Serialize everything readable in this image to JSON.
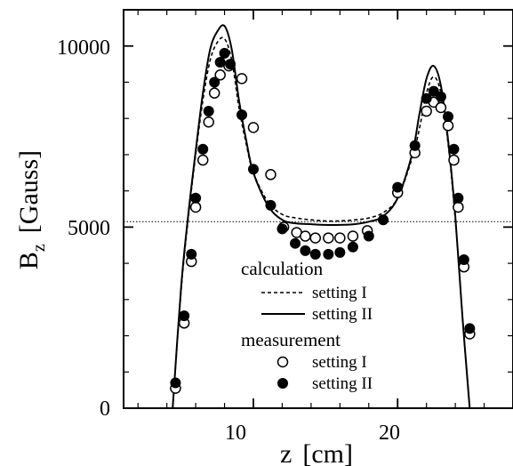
{
  "chart_data": {
    "type": "line",
    "xlabel": "z",
    "xlabel_unit": "[cm]",
    "ylabel": "B",
    "ylabel_sub": "z",
    "ylabel_unit": "[Gauss]",
    "xlim": [
      1,
      28
    ],
    "ylim": [
      0,
      11000
    ],
    "xticks": [
      10,
      20
    ],
    "yticks": [
      0,
      5000,
      10000
    ],
    "x_tick_labels": [
      "10",
      "20"
    ],
    "y_tick_labels": [
      "0",
      "5000",
      "10000"
    ],
    "reference_line": {
      "y": 5150,
      "style": "dotted"
    },
    "legend": {
      "position": "lower-center",
      "calc_title": "calculation",
      "meas_title": "measurement",
      "calc_items": [
        {
          "label": "setting  I",
          "style": "dashed"
        },
        {
          "label": "setting  II",
          "style": "solid"
        }
      ],
      "meas_items": [
        {
          "label": "setting  I",
          "marker": "open-circle"
        },
        {
          "label": "setting  II",
          "marker": "filled-circle"
        }
      ]
    },
    "series": [
      {
        "name": "calculation setting I",
        "kind": "line",
        "style": "dashed",
        "x": [
          4.4,
          5.0,
          5.5,
          6.0,
          6.5,
          7.0,
          7.5,
          8.0,
          8.5,
          9.0,
          9.5,
          10.0,
          11.0,
          12.0,
          13.0,
          14.0,
          15.0,
          16.0,
          17.0,
          18.0,
          19.0,
          20.0,
          21.0,
          21.5,
          22.0,
          22.5,
          23.0,
          23.5,
          24.0,
          24.5,
          25.0
        ],
        "y": [
          0,
          3300,
          5300,
          7000,
          8500,
          9600,
          10100,
          10200,
          9600,
          8300,
          7300,
          6500,
          5700,
          5350,
          5250,
          5200,
          5170,
          5170,
          5200,
          5250,
          5400,
          5800,
          6900,
          7700,
          8700,
          9150,
          8700,
          7300,
          5200,
          2500,
          0
        ]
      },
      {
        "name": "calculation setting II",
        "kind": "line",
        "style": "solid",
        "x": [
          4.4,
          5.0,
          5.5,
          6.0,
          6.5,
          7.0,
          7.5,
          8.0,
          8.5,
          9.0,
          9.5,
          10.0,
          11.0,
          12.0,
          13.0,
          14.0,
          15.0,
          16.0,
          17.0,
          18.0,
          19.0,
          20.0,
          21.0,
          21.5,
          22.0,
          22.5,
          23.0,
          23.5,
          24.0,
          24.5,
          25.0
        ],
        "y": [
          0,
          3400,
          5400,
          7100,
          8700,
          9900,
          10400,
          10550,
          9900,
          8500,
          7400,
          6500,
          5600,
          5200,
          5100,
          5080,
          5060,
          5060,
          5080,
          5150,
          5300,
          5800,
          7000,
          8100,
          9100,
          9450,
          8900,
          7400,
          5300,
          2500,
          0
        ]
      },
      {
        "name": "measurement setting I",
        "kind": "scatter",
        "marker": "open-circle",
        "x": [
          4.6,
          5.2,
          5.7,
          6.0,
          6.5,
          6.9,
          7.3,
          7.7,
          8.3,
          9.2,
          10.0,
          11.2,
          12.1,
          13.0,
          13.6,
          14.3,
          15.2,
          16.0,
          16.9,
          17.9,
          20.0,
          21.2,
          22.0,
          22.5,
          23.0,
          23.5,
          23.9,
          24.2,
          24.6,
          25.0
        ],
        "y": [
          550,
          2350,
          4050,
          5550,
          6850,
          7900,
          8700,
          9200,
          9450,
          9100,
          7750,
          6450,
          5000,
          4850,
          4750,
          4700,
          4700,
          4700,
          4750,
          4900,
          5950,
          7050,
          8200,
          8450,
          8300,
          7800,
          6850,
          5550,
          3900,
          2050
        ]
      },
      {
        "name": "measurement setting II",
        "kind": "scatter",
        "marker": "filled-circle",
        "x": [
          4.6,
          5.2,
          5.7,
          6.0,
          6.5,
          6.9,
          7.3,
          7.7,
          8.0,
          8.4,
          9.2,
          10.0,
          11.2,
          12.0,
          12.9,
          13.6,
          14.3,
          15.2,
          16.0,
          16.9,
          18.0,
          19.0,
          20.0,
          21.2,
          22.0,
          22.5,
          23.0,
          23.5,
          23.9,
          24.2,
          24.6,
          25.0
        ],
        "y": [
          700,
          2550,
          4250,
          5800,
          7150,
          8200,
          9000,
          9550,
          9800,
          9500,
          8100,
          6600,
          5600,
          4950,
          4550,
          4350,
          4250,
          4250,
          4300,
          4450,
          4750,
          5200,
          6100,
          7250,
          8550,
          8750,
          8600,
          8050,
          7150,
          5800,
          4100,
          2200
        ]
      }
    ]
  }
}
